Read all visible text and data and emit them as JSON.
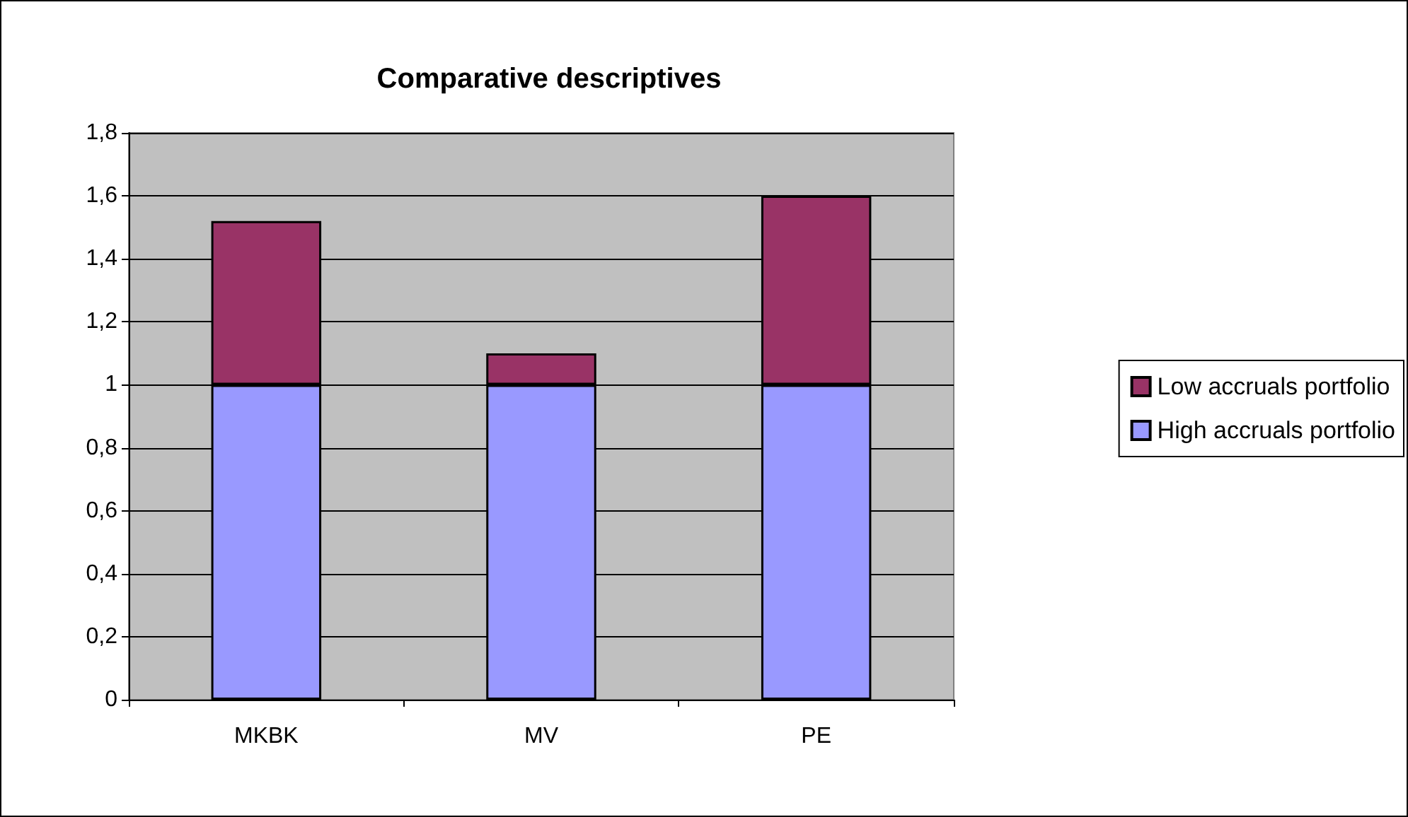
{
  "chart_data": {
    "type": "bar",
    "title": "Comparative descriptives",
    "categories": [
      "MKBK",
      "MV",
      "PE"
    ],
    "stacked": true,
    "series": [
      {
        "name": "High accruals portfolio",
        "color": "#9999ff",
        "values": [
          1,
          1,
          1
        ]
      },
      {
        "name": "Low accruals portfolio",
        "color": "#993366",
        "values": [
          0.52,
          0.1,
          0.6
        ]
      }
    ],
    "ylim": [
      0,
      1.8
    ],
    "yticks": [
      0,
      {
        "value": 0.2,
        "label": "0,2"
      },
      {
        "value": 0.4,
        "label": "0,4"
      },
      {
        "value": 0.6,
        "label": "0,6"
      },
      {
        "value": 0.8,
        "label": "0,8"
      },
      1,
      {
        "value": 1.2,
        "label": "1,2"
      },
      {
        "value": 1.4,
        "label": "1,4"
      },
      {
        "value": 1.6,
        "label": "1,6"
      },
      {
        "value": 1.8,
        "label": "1,8"
      }
    ],
    "grid": "y",
    "legend": "right"
  }
}
